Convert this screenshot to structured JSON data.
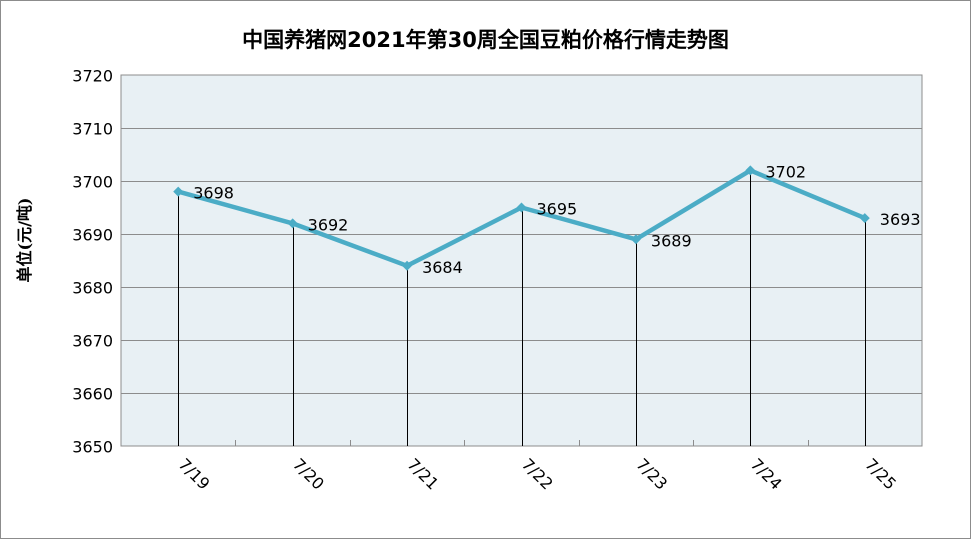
{
  "chart_data": {
    "type": "line",
    "title": "中国养猪网2021年第30周全国豆粕价格行情走势图",
    "xlabel": "",
    "ylabel": "单位(元/吨)",
    "categories": [
      "7/19",
      "7/20",
      "7/21",
      "7/22",
      "7/23",
      "7/24",
      "7/25"
    ],
    "values": [
      3698,
      3692,
      3684,
      3695,
      3689,
      3702,
      3693
    ],
    "ylim": [
      3650,
      3720
    ],
    "yticks": [
      3650,
      3660,
      3670,
      3680,
      3690,
      3700,
      3710,
      3720
    ],
    "grid": true,
    "legend": "none",
    "data_labels": true
  },
  "colors": {
    "line": "#4bacc6",
    "plot_bg": "#e8f0f4",
    "grid": "#8c8c8c",
    "drop_line": "#000000"
  }
}
